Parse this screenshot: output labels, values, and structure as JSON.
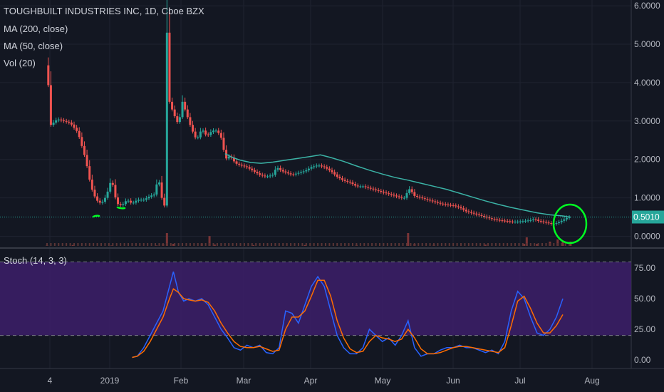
{
  "chart_data": {
    "type": "candlestick",
    "title": "TOUGHBUILT INDUSTRIES INC, 1D, Cboe BZX",
    "indicators": [
      "MA (200, close)",
      "MA (50, close)",
      "Vol (20)"
    ],
    "price_axis": {
      "ticks": [
        "6.0000",
        "5.0000",
        "4.0000",
        "3.0000",
        "2.0000",
        "1.0000",
        "0.0000"
      ],
      "ylim": [
        -0.25,
        6.15
      ]
    },
    "last_price": {
      "label": "0.5010",
      "value": 0.501
    },
    "x_labels": [
      "4",
      "2019",
      "Feb",
      "Mar",
      "Apr",
      "May",
      "Jun",
      "Jul",
      "Aug"
    ],
    "price_path": [
      [
        0,
        4.45
      ],
      [
        3,
        2.9
      ],
      [
        8,
        3.05
      ],
      [
        13,
        3.0
      ],
      [
        18,
        2.95
      ],
      [
        24,
        2.7
      ],
      [
        30,
        2.0
      ],
      [
        34,
        1.3
      ],
      [
        38,
        0.95
      ],
      [
        42,
        0.85
      ],
      [
        46,
        1.05
      ],
      [
        50,
        1.5
      ],
      [
        54,
        0.85
      ],
      [
        58,
        0.8
      ],
      [
        62,
        0.95
      ],
      [
        66,
        0.85
      ],
      [
        70,
        0.95
      ],
      [
        75,
        0.95
      ],
      [
        80,
        1.05
      ],
      [
        84,
        1.1
      ],
      [
        86,
        1.6
      ],
      [
        89,
        1.0
      ],
      [
        91,
        0.8
      ],
      [
        93,
        5.3
      ],
      [
        95,
        3.5
      ],
      [
        98,
        3.2
      ],
      [
        102,
        2.9
      ],
      [
        105,
        3.5
      ],
      [
        108,
        3.2
      ],
      [
        112,
        2.8
      ],
      [
        116,
        2.5
      ],
      [
        120,
        2.8
      ],
      [
        124,
        2.6
      ],
      [
        128,
        2.75
      ],
      [
        132,
        2.75
      ],
      [
        136,
        2.5
      ],
      [
        138,
        2.0
      ],
      [
        142,
        2.1
      ],
      [
        146,
        1.9
      ],
      [
        150,
        1.85
      ],
      [
        155,
        1.8
      ],
      [
        160,
        1.7
      ],
      [
        165,
        1.6
      ],
      [
        170,
        1.55
      ],
      [
        175,
        1.6
      ],
      [
        178,
        1.8
      ],
      [
        182,
        1.7
      ],
      [
        186,
        1.65
      ],
      [
        190,
        1.6
      ],
      [
        195,
        1.65
      ],
      [
        200,
        1.7
      ],
      [
        205,
        1.8
      ],
      [
        210,
        1.85
      ],
      [
        215,
        1.8
      ],
      [
        220,
        1.7
      ],
      [
        225,
        1.55
      ],
      [
        230,
        1.45
      ],
      [
        235,
        1.4
      ],
      [
        240,
        1.3
      ],
      [
        245,
        1.3
      ],
      [
        250,
        1.25
      ],
      [
        255,
        1.2
      ],
      [
        260,
        1.15
      ],
      [
        265,
        1.1
      ],
      [
        270,
        1.05
      ],
      [
        275,
        1.0
      ],
      [
        278,
        1.0
      ],
      [
        280,
        1.25
      ],
      [
        282,
        1.2
      ],
      [
        285,
        1.05
      ],
      [
        290,
        1.0
      ],
      [
        295,
        0.95
      ],
      [
        300,
        0.9
      ],
      [
        305,
        0.85
      ],
      [
        310,
        0.82
      ],
      [
        315,
        0.8
      ],
      [
        320,
        0.75
      ],
      [
        325,
        0.65
      ],
      [
        330,
        0.6
      ],
      [
        335,
        0.55
      ],
      [
        340,
        0.5
      ],
      [
        345,
        0.45
      ],
      [
        350,
        0.42
      ],
      [
        355,
        0.4
      ],
      [
        360,
        0.38
      ],
      [
        365,
        0.38
      ],
      [
        370,
        0.4
      ],
      [
        375,
        0.42
      ],
      [
        378,
        0.45
      ],
      [
        381,
        0.4
      ],
      [
        384,
        0.38
      ],
      [
        388,
        0.35
      ],
      [
        392,
        0.32
      ],
      [
        396,
        0.35
      ],
      [
        400,
        0.42
      ],
      [
        403,
        0.48
      ],
      [
        406,
        0.501
      ]
    ],
    "ma50_path": [
      [
        138,
        2.15
      ],
      [
        144,
        2.05
      ],
      [
        150,
        1.98
      ],
      [
        158,
        1.92
      ],
      [
        166,
        1.9
      ],
      [
        175,
        1.93
      ],
      [
        185,
        1.98
      ],
      [
        195,
        2.03
      ],
      [
        205,
        2.08
      ],
      [
        212,
        2.12
      ],
      [
        220,
        2.05
      ],
      [
        230,
        1.95
      ],
      [
        240,
        1.83
      ],
      [
        250,
        1.72
      ],
      [
        260,
        1.62
      ],
      [
        270,
        1.53
      ],
      [
        280,
        1.46
      ],
      [
        290,
        1.38
      ],
      [
        300,
        1.3
      ],
      [
        310,
        1.22
      ],
      [
        320,
        1.12
      ],
      [
        330,
        1.02
      ],
      [
        340,
        0.92
      ],
      [
        350,
        0.83
      ],
      [
        360,
        0.75
      ],
      [
        370,
        0.68
      ],
      [
        380,
        0.61
      ],
      [
        390,
        0.56
      ],
      [
        400,
        0.53
      ],
      [
        406,
        0.5
      ]
    ],
    "volume": [
      [
        0,
        0.02
      ],
      [
        20,
        0.02
      ],
      [
        50,
        0.01
      ],
      [
        85,
        0.01
      ],
      [
        90,
        0.05
      ],
      [
        93,
        0.3
      ],
      [
        98,
        0.05
      ],
      [
        120,
        0.06
      ],
      [
        126,
        0.23
      ],
      [
        130,
        0.03
      ],
      [
        160,
        0.02
      ],
      [
        200,
        0.02
      ],
      [
        240,
        0.02
      ],
      [
        280,
        0.3
      ],
      [
        285,
        0.05
      ],
      [
        300,
        0.03
      ],
      [
        340,
        0.03
      ],
      [
        370,
        0.05
      ],
      [
        372,
        0.2
      ],
      [
        380,
        0.05
      ],
      [
        390,
        0.1
      ],
      [
        396,
        0.15
      ],
      [
        400,
        0.12
      ],
      [
        406,
        0.1
      ]
    ],
    "stoch": {
      "label": "Stoch (14, 3, 3)",
      "ticks": [
        "75.00",
        "50.00",
        "25.00",
        "0.00"
      ],
      "ylim": [
        -7,
        89
      ],
      "overbought": 80,
      "oversold": 20,
      "k": [
        [
          66,
          2
        ],
        [
          70,
          3
        ],
        [
          75,
          10
        ],
        [
          80,
          20
        ],
        [
          85,
          30
        ],
        [
          90,
          40
        ],
        [
          95,
          60
        ],
        [
          98,
          72
        ],
        [
          102,
          55
        ],
        [
          106,
          48
        ],
        [
          110,
          50
        ],
        [
          115,
          48
        ],
        [
          120,
          50
        ],
        [
          125,
          45
        ],
        [
          130,
          35
        ],
        [
          135,
          25
        ],
        [
          140,
          18
        ],
        [
          145,
          10
        ],
        [
          150,
          8
        ],
        [
          155,
          12
        ],
        [
          160,
          10
        ],
        [
          165,
          12
        ],
        [
          170,
          6
        ],
        [
          175,
          5
        ],
        [
          180,
          10
        ],
        [
          185,
          40
        ],
        [
          190,
          38
        ],
        [
          195,
          30
        ],
        [
          200,
          45
        ],
        [
          205,
          60
        ],
        [
          210,
          68
        ],
        [
          215,
          60
        ],
        [
          220,
          40
        ],
        [
          225,
          20
        ],
        [
          230,
          10
        ],
        [
          235,
          5
        ],
        [
          240,
          5
        ],
        [
          245,
          10
        ],
        [
          250,
          25
        ],
        [
          255,
          20
        ],
        [
          260,
          15
        ],
        [
          265,
          18
        ],
        [
          270,
          12
        ],
        [
          275,
          20
        ],
        [
          280,
          32
        ],
        [
          285,
          10
        ],
        [
          290,
          3
        ],
        [
          295,
          5
        ],
        [
          300,
          5
        ],
        [
          305,
          8
        ],
        [
          310,
          10
        ],
        [
          315,
          10
        ],
        [
          320,
          12
        ],
        [
          325,
          10
        ],
        [
          330,
          10
        ],
        [
          335,
          8
        ],
        [
          340,
          6
        ],
        [
          345,
          8
        ],
        [
          350,
          5
        ],
        [
          355,
          15
        ],
        [
          360,
          40
        ],
        [
          365,
          56
        ],
        [
          370,
          50
        ],
        [
          375,
          35
        ],
        [
          380,
          22
        ],
        [
          385,
          20
        ],
        [
          390,
          25
        ],
        [
          395,
          35
        ],
        [
          400,
          50
        ]
      ],
      "d": [
        [
          66,
          2
        ],
        [
          70,
          3
        ],
        [
          75,
          7
        ],
        [
          80,
          15
        ],
        [
          85,
          25
        ],
        [
          90,
          35
        ],
        [
          95,
          50
        ],
        [
          98,
          58
        ],
        [
          102,
          55
        ],
        [
          106,
          50
        ],
        [
          110,
          49
        ],
        [
          115,
          48
        ],
        [
          120,
          49
        ],
        [
          125,
          47
        ],
        [
          130,
          40
        ],
        [
          135,
          30
        ],
        [
          140,
          22
        ],
        [
          145,
          15
        ],
        [
          150,
          11
        ],
        [
          155,
          10
        ],
        [
          160,
          10
        ],
        [
          165,
          11
        ],
        [
          170,
          9
        ],
        [
          175,
          7
        ],
        [
          180,
          8
        ],
        [
          185,
          25
        ],
        [
          190,
          35
        ],
        [
          195,
          35
        ],
        [
          200,
          40
        ],
        [
          205,
          52
        ],
        [
          210,
          65
        ],
        [
          215,
          65
        ],
        [
          220,
          52
        ],
        [
          225,
          32
        ],
        [
          230,
          18
        ],
        [
          235,
          9
        ],
        [
          240,
          6
        ],
        [
          245,
          7
        ],
        [
          250,
          15
        ],
        [
          255,
          20
        ],
        [
          260,
          18
        ],
        [
          265,
          17
        ],
        [
          270,
          15
        ],
        [
          275,
          17
        ],
        [
          280,
          25
        ],
        [
          285,
          18
        ],
        [
          290,
          9
        ],
        [
          295,
          5
        ],
        [
          300,
          5
        ],
        [
          305,
          6
        ],
        [
          310,
          8
        ],
        [
          315,
          10
        ],
        [
          320,
          11
        ],
        [
          325,
          11
        ],
        [
          330,
          10
        ],
        [
          335,
          9
        ],
        [
          340,
          8
        ],
        [
          345,
          7
        ],
        [
          350,
          6
        ],
        [
          355,
          10
        ],
        [
          360,
          28
        ],
        [
          365,
          48
        ],
        [
          370,
          52
        ],
        [
          375,
          42
        ],
        [
          380,
          30
        ],
        [
          385,
          22
        ],
        [
          390,
          22
        ],
        [
          395,
          28
        ],
        [
          400,
          37
        ]
      ]
    }
  }
}
